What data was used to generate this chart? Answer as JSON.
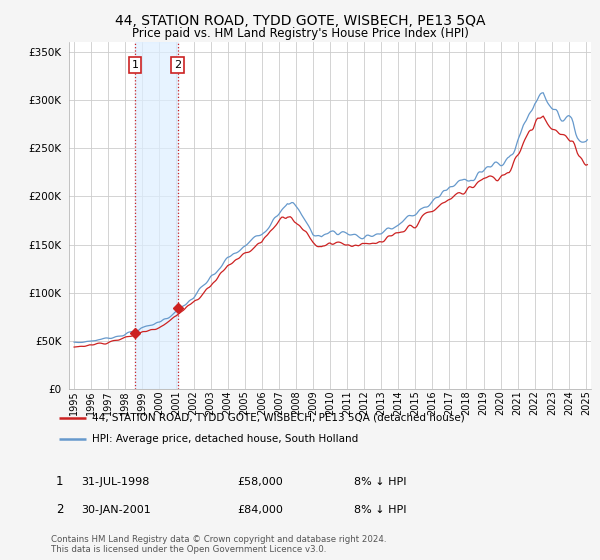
{
  "title": "44, STATION ROAD, TYDD GOTE, WISBECH, PE13 5QA",
  "subtitle": "Price paid vs. HM Land Registry's House Price Index (HPI)",
  "legend_line1": "44, STATION ROAD, TYDD GOTE, WISBECH, PE13 5QA (detached house)",
  "legend_line2": "HPI: Average price, detached house, South Holland",
  "footer": "Contains HM Land Registry data © Crown copyright and database right 2024.\nThis data is licensed under the Open Government Licence v3.0.",
  "transactions": [
    {
      "label": "1",
      "date": "31-JUL-1998",
      "price": 58000,
      "hpi_note": "8% ↓ HPI"
    },
    {
      "label": "2",
      "date": "30-JAN-2001",
      "price": 84000,
      "hpi_note": "8% ↓ HPI"
    }
  ],
  "transaction_years": [
    1998.58,
    2001.08
  ],
  "transaction_prices": [
    58000,
    84000
  ],
  "ylim": [
    0,
    360000
  ],
  "yticks": [
    0,
    50000,
    100000,
    150000,
    200000,
    250000,
    300000,
    350000
  ],
  "xlim_left": 1994.7,
  "xlim_right": 2025.3,
  "background_color": "#f5f5f5",
  "plot_bg_color": "#ffffff",
  "grid_color": "#cccccc",
  "shade_color": "#ddeeff",
  "hpi_color": "#6699cc",
  "price_color": "#cc2222",
  "vline_color": "#cc2222",
  "marker_color": "#cc2222"
}
